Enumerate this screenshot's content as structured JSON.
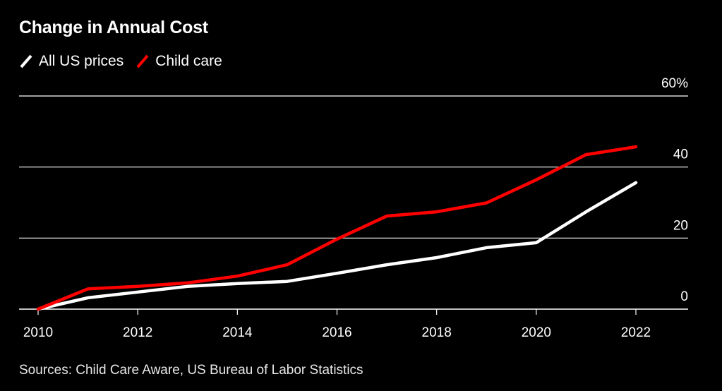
{
  "chart_data": {
    "type": "line",
    "title": "Change in Annual Cost",
    "xlabel": "",
    "ylabel": "",
    "x": [
      2010,
      2011,
      2012,
      2013,
      2014,
      2015,
      2016,
      2017,
      2018,
      2019,
      2020,
      2021,
      2022
    ],
    "series": [
      {
        "name": "All US prices",
        "color": "#ffffff",
        "values": [
          0,
          3.2,
          4.8,
          6.4,
          7.2,
          7.8,
          10.1,
          12.5,
          14.5,
          17.3,
          18.7,
          27.4,
          35.6
        ]
      },
      {
        "name": "Child care",
        "color": "#ff0000",
        "values": [
          0,
          5.7,
          6.4,
          7.4,
          9.3,
          12.5,
          19.7,
          26.2,
          27.4,
          29.9,
          36.4,
          43.5,
          45.7
        ]
      }
    ],
    "xlim": [
      2010,
      2022
    ],
    "ylim": [
      0,
      60
    ],
    "x_ticks": [
      "2010",
      "2012",
      "2014",
      "2016",
      "2018",
      "2020",
      "2022"
    ],
    "y_ticks": [
      {
        "value": 0,
        "label": "0"
      },
      {
        "value": 20,
        "label": "20"
      },
      {
        "value": 40,
        "label": "40"
      },
      {
        "value": 60,
        "label": "60%"
      }
    ],
    "grid": true,
    "legend": "top-left",
    "source": "Sources: Child Care Aware, US Bureau of Labor Statistics"
  },
  "colors": {
    "background": "#000000",
    "grid": "#ffffff",
    "all_us_prices": "#ffffff",
    "child_care": "#ff0000"
  }
}
